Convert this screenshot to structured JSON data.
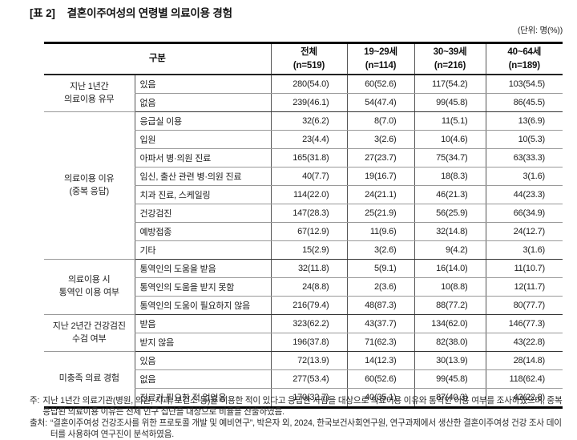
{
  "title": {
    "tag": "[표 2]",
    "text": "결혼이주여성의 연령별 의료이용 경험"
  },
  "unit_note": "(단위: 명(%))",
  "table": {
    "header_gubun": "구분",
    "header_cols": [
      {
        "l1": "전체",
        "l2": "(n=519)"
      },
      {
        "l1": "19~29세",
        "l2": "(n=114)"
      },
      {
        "l1": "30~39세",
        "l2": "(n=216)"
      },
      {
        "l1": "40~64세",
        "l2": "(n=189)"
      }
    ],
    "groups": [
      {
        "label_lines": [
          "지난 1년간",
          "의료이용 유무"
        ],
        "rows": [
          {
            "item": "있음",
            "values": [
              "280(54.0)",
              "60(52.6)",
              "117(54.2)",
              "103(54.5)"
            ]
          },
          {
            "item": "없음",
            "values": [
              "239(46.1)",
              "54(47.4)",
              "99(45.8)",
              "86(45.5)"
            ]
          }
        ]
      },
      {
        "label_lines": [
          "의료이용 이유",
          "(중복 응답)"
        ],
        "rows": [
          {
            "item": "응급실 이용",
            "values": [
              "32(6.2)",
              "8(7.0)",
              "11(5.1)",
              "13(6.9)"
            ]
          },
          {
            "item": "입원",
            "values": [
              "23(4.4)",
              "3(2.6)",
              "10(4.6)",
              "10(5.3)"
            ]
          },
          {
            "item": "아파서 병·의원 진료",
            "values": [
              "165(31.8)",
              "27(23.7)",
              "75(34.7)",
              "63(33.3)"
            ]
          },
          {
            "item": "임신, 출산 관련 병·의원 진료",
            "values": [
              "40(7.7)",
              "19(16.7)",
              "18(8.3)",
              "3(1.6)"
            ]
          },
          {
            "item": "치과 진료, 스케일링",
            "values": [
              "114(22.0)",
              "24(21.1)",
              "46(21.3)",
              "44(23.3)"
            ]
          },
          {
            "item": "건강검진",
            "values": [
              "147(28.3)",
              "25(21.9)",
              "56(25.9)",
              "66(34.9)"
            ]
          },
          {
            "item": "예방접종",
            "values": [
              "67(12.9)",
              "11(9.6)",
              "32(14.8)",
              "24(12.7)"
            ]
          },
          {
            "item": "기타",
            "values": [
              "15(2.9)",
              "3(2.6)",
              "9(4.2)",
              "3(1.6)"
            ]
          }
        ]
      },
      {
        "label_lines": [
          "의료이용 시",
          "통역인 이용 여부"
        ],
        "rows": [
          {
            "item": "통역인의 도움을 받음",
            "values": [
              "32(11.8)",
              "5(9.1)",
              "16(14.0)",
              "11(10.7)"
            ]
          },
          {
            "item": "통역인의 도움을 받지 못함",
            "values": [
              "24(8.8)",
              "2(3.6)",
              "10(8.8)",
              "12(11.7)"
            ]
          },
          {
            "item": "통역인의 도움이 필요하지 않음",
            "values": [
              "216(79.4)",
              "48(87.3)",
              "88(77.2)",
              "80(77.7)"
            ]
          }
        ]
      },
      {
        "label_lines": [
          "지난 2년간 건강검진",
          "수검 여부"
        ],
        "rows": [
          {
            "item": "받음",
            "values": [
              "323(62.2)",
              "43(37.7)",
              "134(62.0)",
              "146(77.3)"
            ]
          },
          {
            "item": "받지 않음",
            "values": [
              "196(37.8)",
              "71(62.3)",
              "82(38.0)",
              "43(22.8)"
            ]
          }
        ]
      },
      {
        "label_lines": [
          "미충족 의료 경험"
        ],
        "rows": [
          {
            "item": "있음",
            "values": [
              "72(13.9)",
              "14(12.3)",
              "30(13.9)",
              "28(14.8)"
            ]
          },
          {
            "item": "없음",
            "values": [
              "277(53.4)",
              "60(52.6)",
              "99(45.8)",
              "118(62.4)"
            ]
          },
          {
            "item": "진료가 필요한 적 없었음",
            "values": [
              "170(32.7)",
              "40(35.1)",
              "87(40.3)",
              "43(22.8)"
            ]
          }
        ]
      }
    ]
  },
  "footnotes": {
    "note_label": "주:",
    "note_text": "지난 1년간 의료기관(병원, 의원, 치과, 보건소 등)을 이용한 적이 있다고 응답한 사람을 대상으로 의료이용 이유와 통역인 이용 여부를 조사하였으며, 중복 응답된 의료이용 이유는 전체 인구 집단을 대상으로 비율을 산출하였음.",
    "source_label": "출처:",
    "source_text": "“결혼이주여성 건강조사를 위한 프로토콜 개발 및 예비연구”, 박은자 외, 2024, 한국보건사회연구원, 연구과제에서 생산한 결혼이주여성 건강 조사 데이터를 사용하여 연구진이 분석하였음."
  }
}
